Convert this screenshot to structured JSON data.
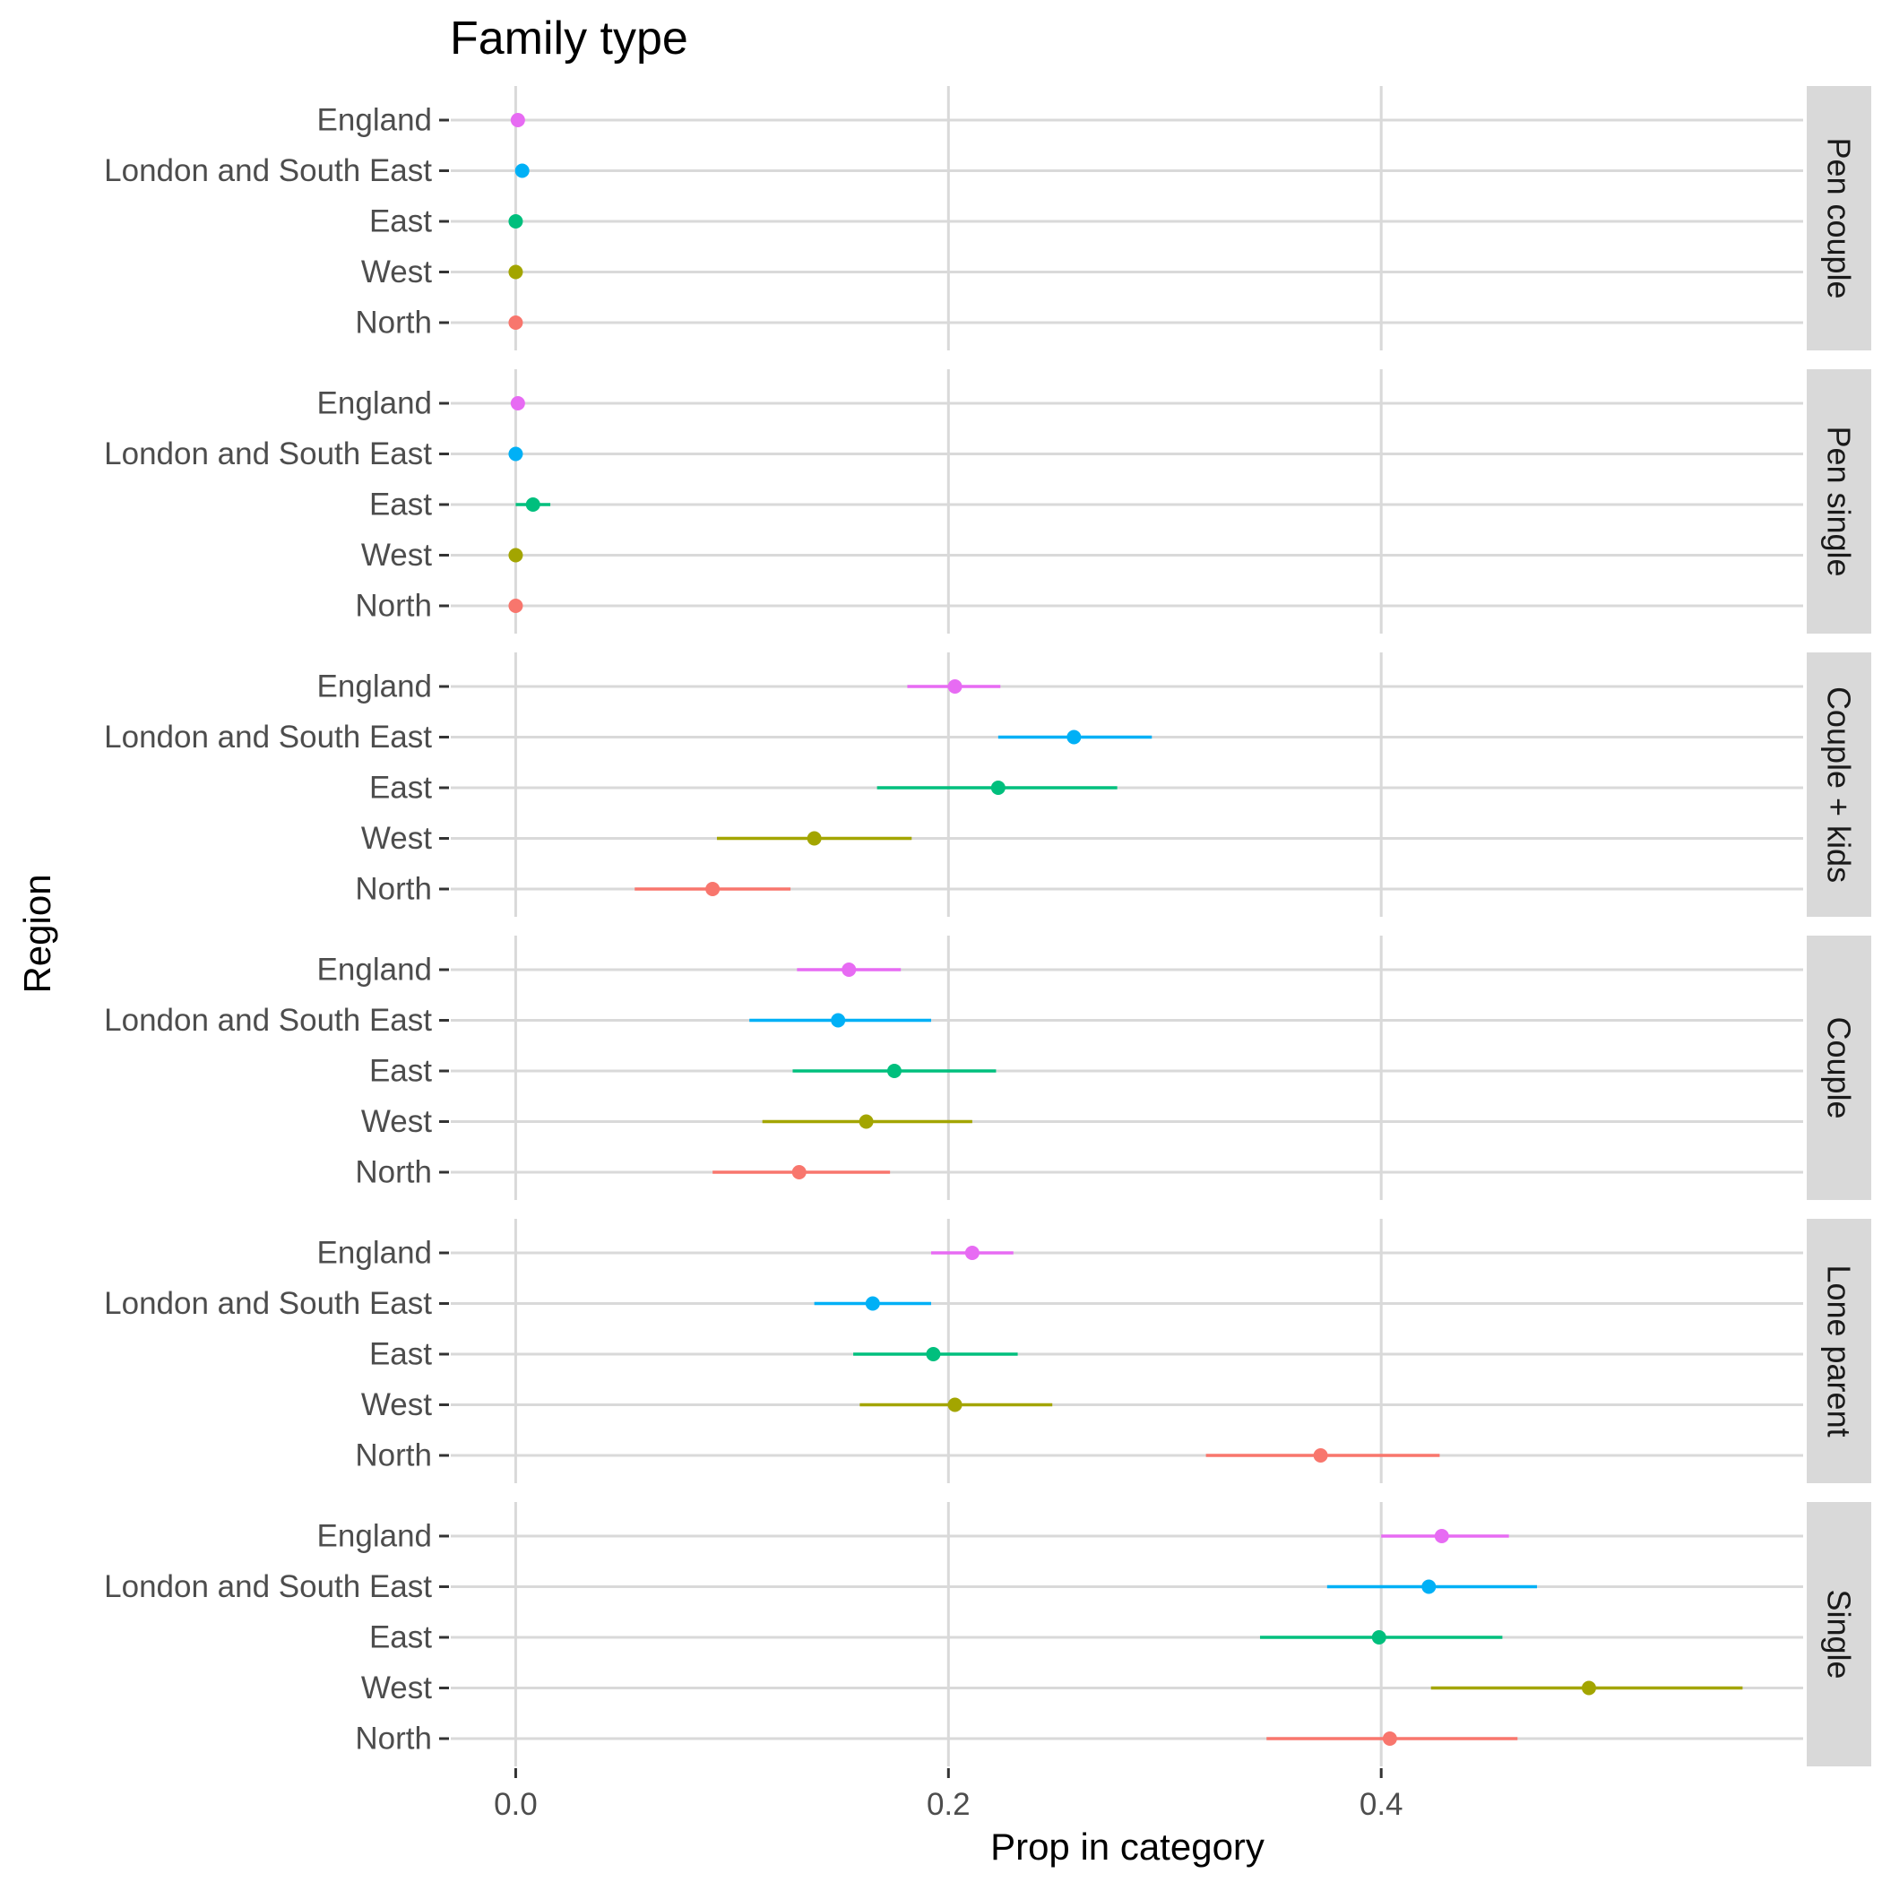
{
  "chart_data": {
    "type": "scatter",
    "subtype": "point-range, faceted by family type",
    "title": "Family type",
    "xlabel": "Prop in category",
    "ylabel": "Region",
    "xlim": [
      -0.03,
      0.595
    ],
    "x_ticks": [
      0.0,
      0.2,
      0.4
    ],
    "x_tick_labels": [
      "0.0",
      "0.2",
      "0.4"
    ],
    "grid": true,
    "legend": "none",
    "regions": [
      "England",
      "London and South East",
      "East",
      "West",
      "North"
    ],
    "region_colors": {
      "England": "#E76BF3",
      "London and South East": "#00B0F6",
      "East": "#00BF7D",
      "West": "#A3A500",
      "North": "#F8766D"
    },
    "facets": [
      {
        "label": "Pen couple",
        "points": [
          {
            "region": "England",
            "value": 0.001,
            "low": 0.001,
            "high": 0.001
          },
          {
            "region": "London and South East",
            "value": 0.003,
            "low": 0.003,
            "high": 0.003
          },
          {
            "region": "East",
            "value": 0.0,
            "low": 0.0,
            "high": 0.0
          },
          {
            "region": "West",
            "value": 0.0,
            "low": 0.0,
            "high": 0.0
          },
          {
            "region": "North",
            "value": 0.0,
            "low": 0.0,
            "high": 0.0
          }
        ]
      },
      {
        "label": "Pen single",
        "points": [
          {
            "region": "England",
            "value": 0.001,
            "low": 0.001,
            "high": 0.001
          },
          {
            "region": "London and South East",
            "value": 0.0,
            "low": 0.0,
            "high": 0.0
          },
          {
            "region": "East",
            "value": 0.008,
            "low": 0.0,
            "high": 0.016
          },
          {
            "region": "West",
            "value": 0.0,
            "low": 0.0,
            "high": 0.0
          },
          {
            "region": "North",
            "value": 0.0,
            "low": 0.0,
            "high": 0.0
          }
        ]
      },
      {
        "label": "Couple + kids",
        "points": [
          {
            "region": "England",
            "value": 0.203,
            "low": 0.181,
            "high": 0.224
          },
          {
            "region": "London and South East",
            "value": 0.258,
            "low": 0.223,
            "high": 0.294
          },
          {
            "region": "East",
            "value": 0.223,
            "low": 0.167,
            "high": 0.278
          },
          {
            "region": "West",
            "value": 0.138,
            "low": 0.093,
            "high": 0.183
          },
          {
            "region": "North",
            "value": 0.091,
            "low": 0.055,
            "high": 0.127
          }
        ]
      },
      {
        "label": "Couple",
        "points": [
          {
            "region": "England",
            "value": 0.154,
            "low": 0.13,
            "high": 0.178
          },
          {
            "region": "London and South East",
            "value": 0.149,
            "low": 0.108,
            "high": 0.192
          },
          {
            "region": "East",
            "value": 0.175,
            "low": 0.128,
            "high": 0.222
          },
          {
            "region": "West",
            "value": 0.162,
            "low": 0.114,
            "high": 0.211
          },
          {
            "region": "North",
            "value": 0.131,
            "low": 0.091,
            "high": 0.173
          }
        ]
      },
      {
        "label": "Lone parent",
        "points": [
          {
            "region": "England",
            "value": 0.211,
            "low": 0.192,
            "high": 0.23
          },
          {
            "region": "London and South East",
            "value": 0.165,
            "low": 0.138,
            "high": 0.192
          },
          {
            "region": "East",
            "value": 0.193,
            "low": 0.156,
            "high": 0.232
          },
          {
            "region": "West",
            "value": 0.203,
            "low": 0.159,
            "high": 0.248
          },
          {
            "region": "North",
            "value": 0.372,
            "low": 0.319,
            "high": 0.427
          }
        ]
      },
      {
        "label": "Single",
        "points": [
          {
            "region": "England",
            "value": 0.428,
            "low": 0.4,
            "high": 0.459
          },
          {
            "region": "London and South East",
            "value": 0.422,
            "low": 0.375,
            "high": 0.472
          },
          {
            "region": "East",
            "value": 0.399,
            "low": 0.344,
            "high": 0.456
          },
          {
            "region": "West",
            "value": 0.496,
            "low": 0.423,
            "high": 0.567
          },
          {
            "region": "North",
            "value": 0.404,
            "low": 0.347,
            "high": 0.463
          }
        ]
      }
    ]
  }
}
